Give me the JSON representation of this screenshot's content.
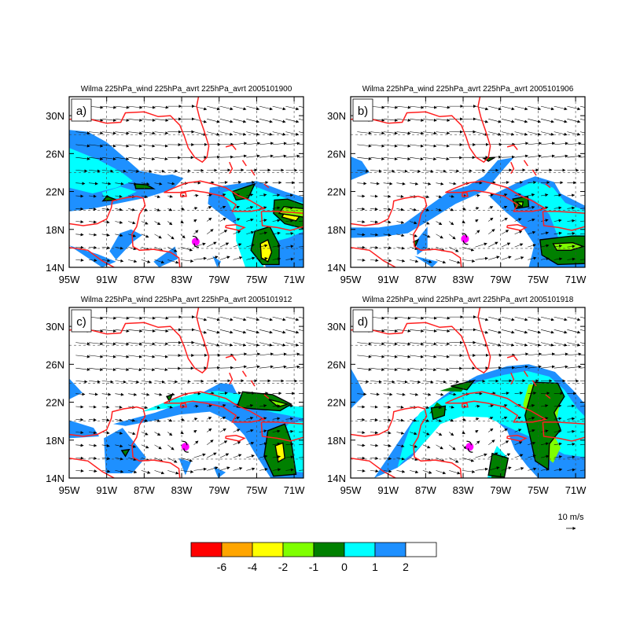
{
  "panels": [
    {
      "letter": "a)",
      "title": "Wilma 225hPa_wind 225hPa_avrt 225hPa_avrt 2005101900"
    },
    {
      "letter": "b)",
      "title": "Wilma 225hPa_wind 225hPa_avrt 225hPa_avrt 2005101906"
    },
    {
      "letter": "c)",
      "title": "Wilma 225hPa_wind 225hPa_avrt 225hPa_avrt 2005101912"
    },
    {
      "letter": "d)",
      "title": "Wilma 225hPa_wind 225hPa_avrt 225hPa_avrt 2005101918"
    }
  ],
  "axes": {
    "lon_ticks": [
      "95W",
      "91W",
      "87W",
      "83W",
      "79W",
      "75W",
      "71W"
    ],
    "lat_ticks": [
      "30N",
      "26N",
      "22N",
      "18N",
      "14N"
    ],
    "lon_range": [
      -95,
      -70
    ],
    "lat_range": [
      14,
      32
    ]
  },
  "reference_vector": {
    "label": "10 m/s"
  },
  "colorbar": {
    "colors": [
      "#ff0000",
      "#ffa500",
      "#ffff00",
      "#7fff00",
      "#008000",
      "#00ffff",
      "#1e90ff",
      "#ffffff"
    ],
    "labels": [
      "-6",
      "-4",
      "-2",
      "-1",
      "0",
      "1",
      "2"
    ]
  },
  "colors": {
    "coast": "#ff2020",
    "contour": "#000000",
    "storm": "#ff00ff"
  }
}
